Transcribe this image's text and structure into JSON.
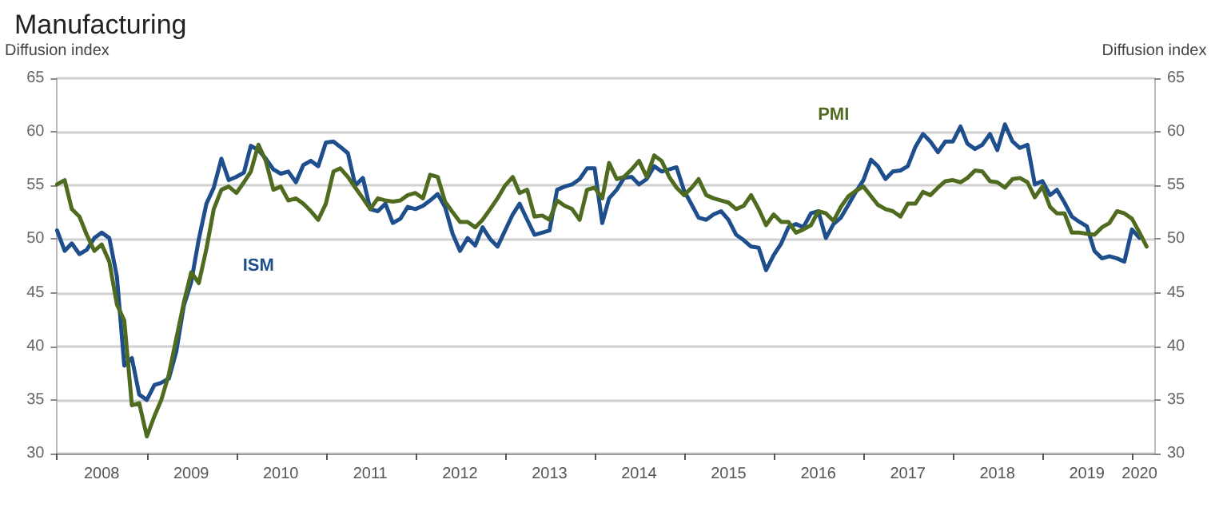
{
  "chart_data": {
    "type": "line",
    "title": "Manufacturing",
    "ylabel": "Diffusion index",
    "y2label": "Diffusion index",
    "x": [
      "2008-01",
      "2008-02",
      "2008-03",
      "2008-04",
      "2008-05",
      "2008-06",
      "2008-07",
      "2008-08",
      "2008-09",
      "2008-10",
      "2008-11",
      "2008-12",
      "2009-01",
      "2009-02",
      "2009-03",
      "2009-04",
      "2009-05",
      "2009-06",
      "2009-07",
      "2009-08",
      "2009-09",
      "2009-10",
      "2009-11",
      "2009-12",
      "2010-01",
      "2010-02",
      "2010-03",
      "2010-04",
      "2010-05",
      "2010-06",
      "2010-07",
      "2010-08",
      "2010-09",
      "2010-10",
      "2010-11",
      "2010-12",
      "2011-01",
      "2011-02",
      "2011-03",
      "2011-04",
      "2011-05",
      "2011-06",
      "2011-07",
      "2011-08",
      "2011-09",
      "2011-10",
      "2011-11",
      "2011-12",
      "2012-01",
      "2012-02",
      "2012-03",
      "2012-04",
      "2012-05",
      "2012-06",
      "2012-07",
      "2012-08",
      "2012-09",
      "2012-10",
      "2012-11",
      "2012-12",
      "2013-01",
      "2013-02",
      "2013-03",
      "2013-04",
      "2013-05",
      "2013-06",
      "2013-07",
      "2013-08",
      "2013-09",
      "2013-10",
      "2013-11",
      "2013-12",
      "2014-01",
      "2014-02",
      "2014-03",
      "2014-04",
      "2014-05",
      "2014-06",
      "2014-07",
      "2014-08",
      "2014-09",
      "2014-10",
      "2014-11",
      "2014-12",
      "2015-01",
      "2015-02",
      "2015-03",
      "2015-04",
      "2015-05",
      "2015-06",
      "2015-07",
      "2015-08",
      "2015-09",
      "2015-10",
      "2015-11",
      "2015-12",
      "2016-01",
      "2016-02",
      "2016-03",
      "2016-04",
      "2016-05",
      "2016-06",
      "2016-07",
      "2016-08",
      "2016-09",
      "2016-10",
      "2016-11",
      "2016-12",
      "2017-01",
      "2017-02",
      "2017-03",
      "2017-04",
      "2017-05",
      "2017-06",
      "2017-07",
      "2017-08",
      "2017-09",
      "2017-10",
      "2017-11",
      "2017-12",
      "2018-01",
      "2018-02",
      "2018-03",
      "2018-04",
      "2018-05",
      "2018-06",
      "2018-07",
      "2018-08",
      "2018-09",
      "2018-10",
      "2018-11",
      "2018-12",
      "2019-01",
      "2019-02",
      "2019-03",
      "2019-04",
      "2019-05",
      "2019-06",
      "2019-07",
      "2019-08",
      "2019-09",
      "2019-10",
      "2019-11",
      "2019-12",
      "2020-01",
      "2020-02",
      "2020-03"
    ],
    "series": [
      {
        "name": "ISM",
        "color": "#1f4e8c",
        "values": [
          50.8,
          48.9,
          49.6,
          48.6,
          49.0,
          50.1,
          50.6,
          50.1,
          46.5,
          38.2,
          38.9,
          35.5,
          35.0,
          36.4,
          36.6,
          37.0,
          39.5,
          43.8,
          46.0,
          50.0,
          53.3,
          54.8,
          57.5,
          55.5,
          55.8,
          56.2,
          58.7,
          58.3,
          57.5,
          56.5,
          56.1,
          56.3,
          55.3,
          56.9,
          57.3,
          56.8,
          59.0,
          59.1,
          58.6,
          58.0,
          55.0,
          55.7,
          52.8,
          52.6,
          53.3,
          51.5,
          51.9,
          53.0,
          52.8,
          53.1,
          53.6,
          54.2,
          53.0,
          50.5,
          48.9,
          50.1,
          49.4,
          51.1,
          50.0,
          49.3,
          50.8,
          52.3,
          53.3,
          51.8,
          50.4,
          50.6,
          50.8,
          54.6,
          54.9,
          55.1,
          55.6,
          56.6,
          56.6,
          51.5,
          53.8,
          54.6,
          55.7,
          55.8,
          55.1,
          55.6,
          56.8,
          56.3,
          56.5,
          56.7,
          54.5,
          53.2,
          52.0,
          51.8,
          52.3,
          52.6,
          51.8,
          50.4,
          49.9,
          49.3,
          49.2,
          47.1,
          48.5,
          49.6,
          51.1,
          51.4,
          51.1,
          52.4,
          52.6,
          50.1,
          51.4,
          52.0,
          53.2,
          54.4,
          55.5,
          57.4,
          56.8,
          55.6,
          56.3,
          56.4,
          56.8,
          58.6,
          59.8,
          59.1,
          58.1,
          59.1,
          59.1,
          60.5,
          58.9,
          58.4,
          58.8,
          59.8,
          58.3,
          60.7,
          59.1,
          58.5,
          58.8,
          55.1,
          55.4,
          54.1,
          54.6,
          53.4,
          52.1,
          51.6,
          51.2,
          48.9,
          48.2,
          48.4,
          48.2,
          47.9,
          50.9,
          50.1,
          null
        ]
      },
      {
        "name": "PMI",
        "color": "#4e6b1f",
        "values": [
          55.1,
          55.5,
          52.8,
          52.1,
          50.4,
          48.9,
          49.5,
          47.9,
          43.9,
          42.4,
          34.5,
          34.7,
          31.6,
          33.5,
          35.0,
          37.4,
          40.7,
          44.1,
          46.9,
          45.9,
          49.1,
          52.8,
          54.6,
          54.9,
          54.3,
          55.3,
          56.3,
          58.8,
          57.3,
          54.6,
          54.9,
          53.6,
          53.8,
          53.3,
          52.6,
          51.8,
          53.3,
          56.3,
          56.6,
          55.8,
          54.8,
          53.8,
          52.8,
          53.8,
          53.6,
          53.5,
          53.6,
          54.1,
          54.3,
          53.8,
          56.0,
          55.8,
          53.5,
          52.5,
          51.6,
          51.6,
          51.1,
          51.8,
          52.8,
          53.8,
          55.0,
          55.8,
          54.3,
          54.6,
          52.1,
          52.2,
          51.8,
          53.6,
          53.1,
          52.8,
          51.8,
          54.6,
          54.8,
          53.8,
          57.1,
          55.6,
          55.8,
          56.5,
          57.3,
          55.8,
          57.8,
          57.3,
          55.8,
          54.8,
          54.1,
          54.8,
          55.6,
          54.1,
          53.8,
          53.6,
          53.4,
          52.8,
          53.1,
          54.1,
          52.8,
          51.3,
          52.3,
          51.6,
          51.6,
          50.6,
          50.9,
          51.3,
          52.6,
          52.4,
          51.7,
          53.0,
          54.0,
          54.5,
          54.9,
          54.0,
          53.2,
          52.8,
          52.6,
          52.1,
          53.3,
          53.3,
          54.4,
          54.1,
          54.8,
          55.4,
          55.5,
          55.3,
          55.7,
          56.4,
          56.3,
          55.4,
          55.3,
          54.8,
          55.6,
          55.7,
          55.3,
          53.9,
          54.9,
          53.0,
          52.4,
          52.4,
          50.6,
          50.6,
          50.5,
          50.4,
          51.1,
          51.5,
          52.6,
          52.4,
          51.9,
          50.6,
          49.3
        ]
      }
    ],
    "xlim": [
      "2008-01",
      "2020-04"
    ],
    "xticks": [
      {
        "value": "2008-01",
        "label": null
      },
      {
        "value": "2008-07",
        "label": "2008"
      },
      {
        "value": "2009-01",
        "label": null
      },
      {
        "value": "2009-07",
        "label": "2009"
      },
      {
        "value": "2010-01",
        "label": null
      },
      {
        "value": "2010-07",
        "label": "2010"
      },
      {
        "value": "2011-01",
        "label": null
      },
      {
        "value": "2011-07",
        "label": "2011"
      },
      {
        "value": "2012-01",
        "label": null
      },
      {
        "value": "2012-07",
        "label": "2012"
      },
      {
        "value": "2013-01",
        "label": null
      },
      {
        "value": "2013-07",
        "label": "2013"
      },
      {
        "value": "2014-01",
        "label": null
      },
      {
        "value": "2014-07",
        "label": "2014"
      },
      {
        "value": "2015-01",
        "label": null
      },
      {
        "value": "2015-07",
        "label": "2015"
      },
      {
        "value": "2016-01",
        "label": null
      },
      {
        "value": "2016-07",
        "label": "2016"
      },
      {
        "value": "2017-01",
        "label": null
      },
      {
        "value": "2017-07",
        "label": "2017"
      },
      {
        "value": "2018-01",
        "label": null
      },
      {
        "value": "2018-07",
        "label": "2018"
      },
      {
        "value": "2019-01",
        "label": null
      },
      {
        "value": "2019-07",
        "label": "2019"
      },
      {
        "value": "2020-01",
        "label": null
      },
      {
        "value": "2020-02",
        "label": "2020"
      }
    ],
    "ylim": [
      30,
      65
    ],
    "yticks": [
      30,
      35,
      40,
      45,
      50,
      55,
      60,
      65
    ],
    "y2lim": [
      30,
      65
    ],
    "y2ticks": [
      30,
      35,
      40,
      45,
      50,
      55,
      60,
      65
    ],
    "grid": "y",
    "legend": false,
    "marker": "none",
    "line_style": "solid"
  }
}
